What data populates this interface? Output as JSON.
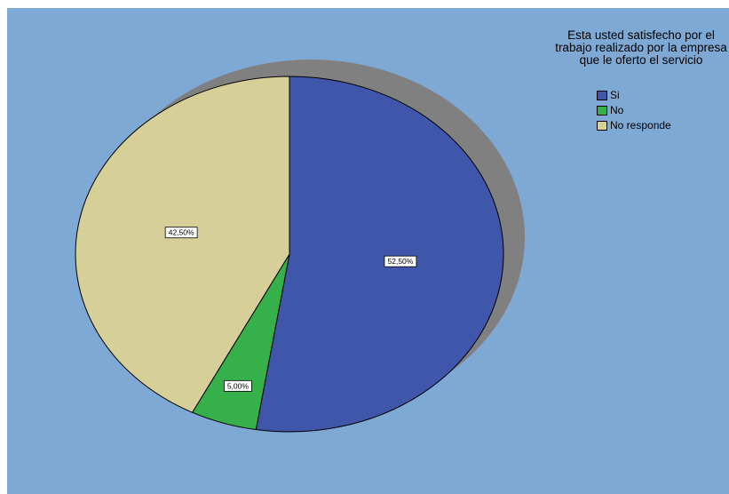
{
  "chart_data": {
    "type": "pie",
    "legend_title": "Esta usted satisfecho por el trabajo realizado por la empresa que le oferto el servicio",
    "legend_position": "top-right",
    "slices": [
      {
        "label": "Si",
        "value": 52.5,
        "value_label": "52,50%",
        "color": "#3f56aa"
      },
      {
        "label": "No",
        "value": 5.0,
        "value_label": "5,00%",
        "color": "#35b04a"
      },
      {
        "label": "No responde",
        "value": 42.5,
        "value_label": "42,50%",
        "color": "#d6cf98"
      }
    ],
    "shadow_color": "#808080",
    "background_color": "#7fa9d5"
  }
}
